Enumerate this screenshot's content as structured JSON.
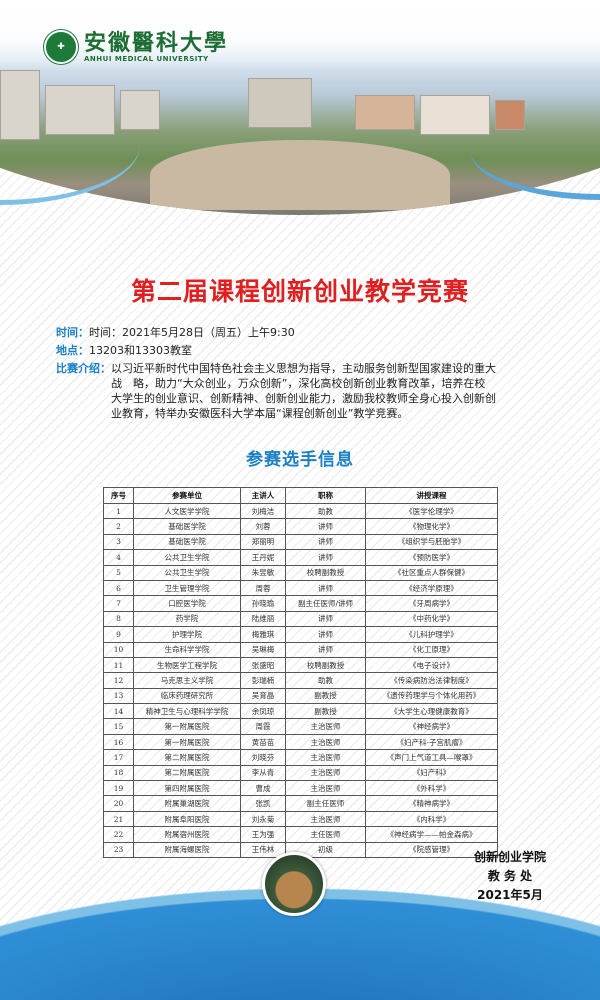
{
  "header": {
    "logo_cn": "安徽醫科大學",
    "logo_en": "ANHUI MEDICAL UNIVERSITY"
  },
  "title": "第二届课程创新创业教学竞赛",
  "info": {
    "time_label": "时间：",
    "time_value": "时间：2021年5月28日（周五）上午9:30",
    "place_label": "地点：",
    "place_value": "13203和13303教室",
    "intro_label": "比赛介绍：",
    "intro_value": "以习近平新时代中国特色社会主义思想为指导，主动服务创新型国家建设的重大战　略，助力“大众创业，万众创新”，深化高校创新创业教育改革，培养在校大学生的创业意识、创新精神、创新创业能力，激励我校教师全身心投入创新创业教育，特举办安徽医科大学本届“课程创新创业”教学竞赛。"
  },
  "section_title": "参赛选手信息",
  "table": {
    "headers": [
      "序号",
      "参赛单位",
      "主讲人",
      "职称",
      "讲授课程"
    ],
    "rows": [
      [
        "1",
        "人文医学学院",
        "刘梅洁",
        "助教",
        "《医学伦理学》"
      ],
      [
        "2",
        "基础医学院",
        "刘蓉",
        "讲师",
        "《物理化学》"
      ],
      [
        "3",
        "基础医学院",
        "郑丽明",
        "讲师",
        "《组织学与胚胎学》"
      ],
      [
        "4",
        "公共卫生学院",
        "王丹妮",
        "讲师",
        "《预防医学》"
      ],
      [
        "5",
        "公共卫生学院",
        "朱昱敏",
        "校聘副教授",
        "《社区重点人群保健》"
      ],
      [
        "6",
        "卫生管理学院",
        "周蓉",
        "讲师",
        "《经济学原理》"
      ],
      [
        "7",
        "口腔医学院",
        "孙晓瑜",
        "副主任医师/讲师",
        "《牙周病学》"
      ],
      [
        "8",
        "药学院",
        "陆维丽",
        "讲师",
        "《中药化学》"
      ],
      [
        "9",
        "护理学院",
        "梅雅琪",
        "讲师",
        "《儿科护理学》"
      ],
      [
        "10",
        "生命科学学院",
        "吴琳梅",
        "讲师",
        "《化工原理》"
      ],
      [
        "11",
        "生物医学工程学院",
        "张盛昭",
        "校聘副教授",
        "《电子设计》"
      ],
      [
        "12",
        "马克思主义学院",
        "彭瑞楠",
        "助教",
        "《传染病防治法律制度》"
      ],
      [
        "13",
        "临床药理研究所",
        "吴育晶",
        "副教授",
        "《遗传药理学与个体化用药》"
      ],
      [
        "14",
        "精神卫生与心理科学学院",
        "余凤琼",
        "副教授",
        "《大学生心理健康教育》"
      ],
      [
        "15",
        "第一附属医院",
        "周霞",
        "主治医师",
        "《神经病学》"
      ],
      [
        "16",
        "第一附属医院",
        "黄苗苗",
        "主治医师",
        "《妇产科-子宫肌瘤》"
      ],
      [
        "17",
        "第二附属医院",
        "刘晓芬",
        "主治医师",
        "《声门上气道工具—喉罩》"
      ],
      [
        "18",
        "第二附属医院",
        "李从青",
        "主治医师",
        "《妇产科》"
      ],
      [
        "19",
        "第四附属医院",
        "曹成",
        "主治医师",
        "《外科学》"
      ],
      [
        "20",
        "附属巢湖医院",
        "张凯",
        "副主任医师",
        "《精神病学》"
      ],
      [
        "21",
        "附属阜阳医院",
        "刘永菊",
        "主治医师",
        "《内科学》"
      ],
      [
        "22",
        "附属宿州医院",
        "王为强",
        "主任医师",
        "《神经病学——帕金森病》"
      ],
      [
        "23",
        "附属海螺医院",
        "王伟林",
        "初级",
        "《院感管理》"
      ]
    ]
  },
  "footer": {
    "org1": "创新创业学院",
    "org2": "教 务 处",
    "date": "2021年5月"
  },
  "colors": {
    "title_red": "#e02020",
    "accent_blue": "#1a7fc4",
    "logo_green": "#1d6e34"
  }
}
